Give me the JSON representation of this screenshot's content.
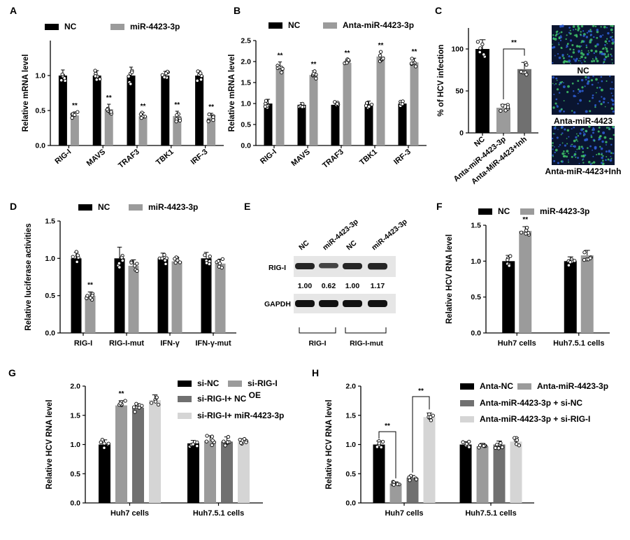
{
  "colors": {
    "black": "#000000",
    "grey": "#9b9b9b",
    "darkgrey": "#707070",
    "lightgrey": "#d5d5d5"
  },
  "chart_data": [
    {
      "panel": "A",
      "type": "bar",
      "categories": [
        "RIG-I",
        "MAVS",
        "TRAF3",
        "TBK1",
        "IRF-3"
      ],
      "ylabel": "Relative mRNA level",
      "ylim": [
        0,
        1.5
      ],
      "yticks": [
        "0.0",
        "0.5",
        "1.0"
      ],
      "series": [
        {
          "name": "NC",
          "values": [
            1.0,
            1.0,
            1.0,
            1.0,
            1.0
          ],
          "errors": [
            0.08,
            0.07,
            0.12,
            0.06,
            0.07
          ],
          "color": "black"
        },
        {
          "name": "miR-4423-3p",
          "values": [
            0.43,
            0.52,
            0.42,
            0.42,
            0.4
          ],
          "errors": [
            0.05,
            0.07,
            0.05,
            0.07,
            0.06
          ],
          "color": "grey"
        }
      ],
      "annotations": [
        "**",
        "**",
        "**",
        "**",
        "**"
      ]
    },
    {
      "panel": "B",
      "type": "bar",
      "categories": [
        "RIG-I",
        "MAVS",
        "TRAF3",
        "TBK1",
        "IRF-3"
      ],
      "ylabel": "Relative mRNA level",
      "ylim": [
        0,
        2.5
      ],
      "yticks": [
        "0.0",
        "0.5",
        "1.0",
        "1.5",
        "2.0",
        "2.5"
      ],
      "series": [
        {
          "name": "NC",
          "values": [
            1.0,
            0.97,
            0.97,
            0.98,
            1.0
          ],
          "errors": [
            0.1,
            0.05,
            0.08,
            0.08,
            0.06
          ],
          "color": "black"
        },
        {
          "name": "Anta-miR-4423-3p",
          "values": [
            1.87,
            1.68,
            1.97,
            2.12,
            1.98
          ],
          "errors": [
            0.12,
            0.1,
            0.08,
            0.11,
            0.1
          ],
          "color": "grey"
        }
      ],
      "annotations": [
        "**",
        "**",
        "**",
        "**",
        "**"
      ]
    },
    {
      "panel": "C",
      "type": "bar",
      "categories": [
        "NC",
        "Anta-miR-4423-3p",
        "Anta-MiR-4423+Inh"
      ],
      "ylabel": "% of HCV infection",
      "ylim": [
        0,
        125
      ],
      "yticks": [
        "0",
        "50",
        "100"
      ],
      "values": [
        100,
        30,
        76
      ],
      "errors": [
        11,
        4,
        8
      ],
      "colors": [
        "black",
        "grey",
        "darkgrey"
      ],
      "annotations": [
        "**"
      ],
      "image_labels": [
        "NC",
        "Anta-miR-4423",
        "Anta-miR-4423+Inh"
      ]
    },
    {
      "panel": "D",
      "type": "bar",
      "categories": [
        "RIG-I",
        "RIG-I-mut",
        "IFN-γ",
        "IFN-γ-mut"
      ],
      "ylabel": "Relative luciferase activities",
      "ylim": [
        0,
        1.5
      ],
      "yticks": [
        "0.0",
        "0.5",
        "1.0",
        "1.5"
      ],
      "series": [
        {
          "name": "NC",
          "values": [
            1.0,
            1.0,
            1.0,
            1.0
          ],
          "errors": [
            0.08,
            0.15,
            0.07,
            0.08
          ],
          "color": "black"
        },
        {
          "name": "miR-4423-3p",
          "values": [
            0.5,
            0.9,
            0.96,
            0.93
          ],
          "errors": [
            0.05,
            0.08,
            0.05,
            0.06
          ],
          "color": "grey"
        }
      ],
      "annotations": [
        "**"
      ]
    },
    {
      "panel": "E",
      "type": "blot",
      "lane_labels": [
        "NC",
        "miR-4423-3p",
        "NC",
        "miR-4423-3p"
      ],
      "rows": [
        "RIG-I",
        "GAPDH"
      ],
      "quant": [
        "1.00",
        "0.62",
        "1.00",
        "1.17"
      ],
      "groups": [
        "RIG-I",
        "RIG-I-mut"
      ]
    },
    {
      "panel": "F",
      "type": "bar",
      "categories": [
        "Huh7 cells",
        "Huh7.5.1 cells"
      ],
      "ylabel": "Relative HCV RNA level",
      "ylim": [
        0,
        1.5
      ],
      "yticks": [
        "0.0",
        "0.5",
        "1.0",
        "1.5"
      ],
      "series": [
        {
          "name": "NC",
          "values": [
            1.0,
            1.0
          ],
          "errors": [
            0.08,
            0.06
          ],
          "color": "black"
        },
        {
          "name": "miR-4423-3p",
          "values": [
            1.42,
            1.08
          ],
          "errors": [
            0.06,
            0.07
          ],
          "color": "grey"
        }
      ],
      "annotations": [
        "**"
      ]
    },
    {
      "panel": "G",
      "type": "bar",
      "categories": [
        "Huh7 cells",
        "Huh7.5.1 cells"
      ],
      "ylabel": "Relative HCV RNA level",
      "ylim": [
        0,
        2.0
      ],
      "yticks": [
        "0.0",
        "0.5",
        "1.0",
        "1.5",
        "2.0"
      ],
      "series": [
        {
          "name": "si-NC",
          "values": [
            1.0,
            1.02
          ],
          "errors": [
            0.08,
            0.05
          ],
          "color": "black"
        },
        {
          "name": "si-RIG-I",
          "values": [
            1.67,
            1.06
          ],
          "errors": [
            0.08,
            0.09
          ],
          "color": "grey"
        },
        {
          "name": "si-RIG-I+ NC",
          "name_sup": "OE",
          "values": [
            1.63,
            1.05
          ],
          "errors": [
            0.07,
            0.08
          ],
          "color": "darkgrey"
        },
        {
          "name": "si-RIG-I+ miR-4423-3p",
          "values": [
            1.76,
            1.05
          ],
          "errors": [
            0.09,
            0.05
          ],
          "color": "lightgrey"
        }
      ],
      "annotations": [
        "**"
      ]
    },
    {
      "panel": "H",
      "type": "bar",
      "categories": [
        "Huh7 cells",
        "Huh7.5.1 cells"
      ],
      "ylabel": "Relative HCV RNA level",
      "ylim": [
        0,
        2.0
      ],
      "yticks": [
        "0.0",
        "0.5",
        "1.0",
        "1.5",
        "2.0"
      ],
      "series": [
        {
          "name": "Anta-NC",
          "values": [
            1.0,
            1.0
          ],
          "errors": [
            0.06,
            0.05
          ],
          "color": "black"
        },
        {
          "name": "Anta-miR-4423-3p",
          "values": [
            0.33,
            0.97
          ],
          "errors": [
            0.03,
            0.05
          ],
          "color": "grey"
        },
        {
          "name": "Anta-miR-4423-3p + si-NC",
          "values": [
            0.43,
            1.0
          ],
          "errors": [
            0.04,
            0.06
          ],
          "color": "darkgrey"
        },
        {
          "name": "Anta-miR-4423-3p + si-RIG-I",
          "values": [
            1.47,
            1.05
          ],
          "errors": [
            0.07,
            0.07
          ],
          "color": "lightgrey"
        }
      ],
      "annotations": [
        "**",
        "**"
      ]
    }
  ]
}
